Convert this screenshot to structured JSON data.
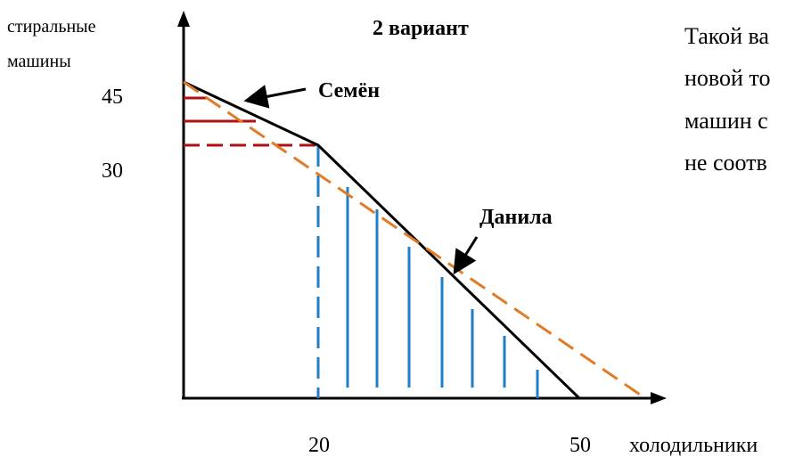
{
  "title": "2 вариант",
  "y_axis_label_lines": [
    "стиральные",
    "машины"
  ],
  "x_axis_label": "холодильники",
  "y_ticks": [
    "45",
    "30"
  ],
  "x_ticks": [
    "20",
    "50"
  ],
  "curve_labels": {
    "semyon": "Семён",
    "danila": "Данила"
  },
  "side_text_lines": [
    "Такой ва",
    "новой то",
    "машин с",
    "не соотв"
  ],
  "colors": {
    "axis": "#000000",
    "semyon_line": "#000000",
    "danila_line": "#e07b27",
    "red_lines": "#b01010",
    "blue_hatch": "#1f7fc9"
  }
}
